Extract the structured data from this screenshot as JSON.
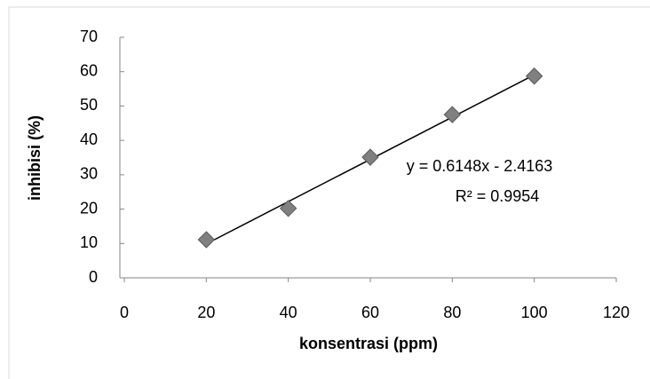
{
  "chart_data": {
    "type": "scatter",
    "x_label": "konsentrasi (ppm)",
    "y_label": "inhibisi (%)",
    "series": [
      {
        "color": "#808080",
        "x": [
          20,
          40,
          60,
          80,
          100
        ],
        "values": [
          11.1,
          20.2,
          35.1,
          47.5,
          58.7
        ]
      }
    ],
    "trendline": {
      "slope": 0.6148,
      "intercept": -2.4163,
      "color": "#000000"
    },
    "annotations": [
      "y = 0.6148x - 2.4163",
      "R² = 0.9954"
    ],
    "xlim": [
      0,
      120
    ],
    "xticks": [
      0,
      20,
      40,
      60,
      80,
      100,
      120
    ],
    "ylim": [
      0,
      70
    ],
    "yticks": [
      0,
      10,
      20,
      30,
      40,
      50,
      60,
      70
    ],
    "grid": false
  }
}
